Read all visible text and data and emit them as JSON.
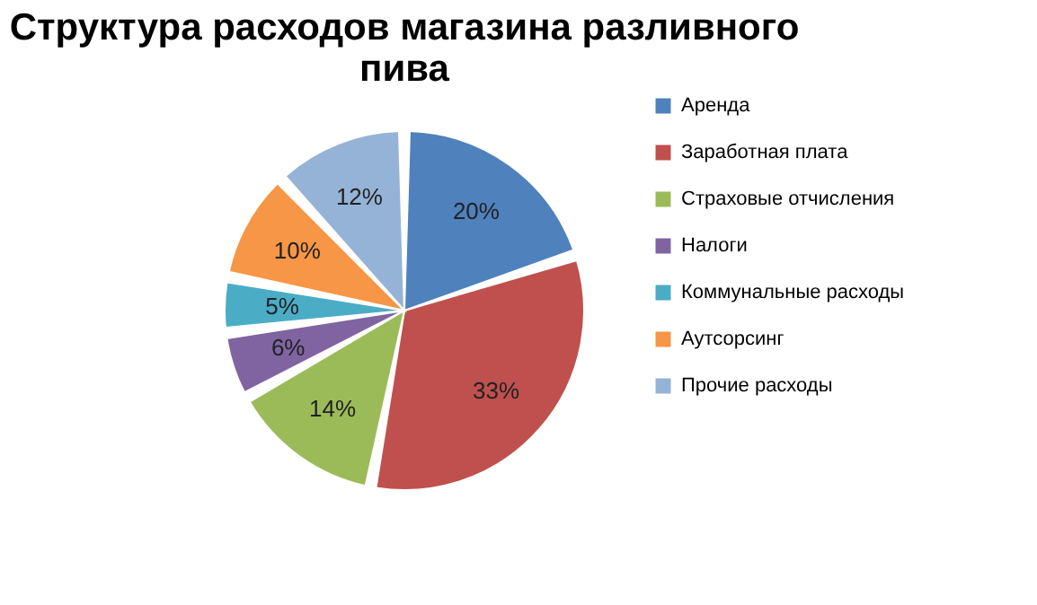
{
  "chart_data": {
    "type": "pie",
    "title": "Структура расходов магазина разливного пива",
    "categories": [
      "Аренда",
      "Заработная плата",
      "Страховые отчисления",
      "Налоги",
      "Коммунальные расходы",
      "Аутсорсинг",
      "Прочие расходы"
    ],
    "values": [
      20,
      33,
      14,
      6,
      5,
      10,
      12
    ],
    "colors": [
      "#4f81bd",
      "#c0504d",
      "#9bbb59",
      "#8064a2",
      "#4bacc6",
      "#f79646",
      "#95b3d7"
    ],
    "value_labels": [
      "20%",
      "33%",
      "14%",
      "6%",
      "5%",
      "10%",
      "12%"
    ],
    "legend": "right"
  }
}
